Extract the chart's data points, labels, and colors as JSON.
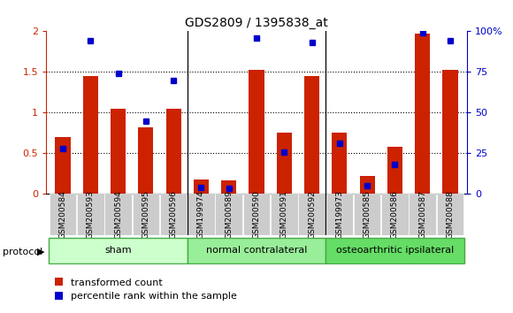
{
  "title": "GDS2809 / 1395838_at",
  "samples": [
    "GSM200584",
    "GSM200593",
    "GSM200594",
    "GSM200595",
    "GSM200596",
    "GSM199974",
    "GSM200589",
    "GSM200590",
    "GSM200591",
    "GSM200592",
    "GSM199973",
    "GSM200585",
    "GSM200586",
    "GSM200587",
    "GSM200588"
  ],
  "red_values": [
    0.7,
    1.45,
    1.05,
    0.82,
    1.05,
    0.18,
    0.17,
    1.53,
    0.75,
    1.45,
    0.76,
    0.22,
    0.58,
    1.97,
    1.53
  ],
  "blue_percentile": [
    28,
    94,
    74,
    45,
    70,
    4,
    3.5,
    96,
    26,
    93,
    31,
    5,
    18,
    99,
    94
  ],
  "ylim_left": [
    0,
    2
  ],
  "ylim_right": [
    0,
    100
  ],
  "yticks_left": [
    0,
    0.5,
    1.0,
    1.5,
    2.0
  ],
  "yticks_right": [
    0,
    25,
    50,
    75,
    100
  ],
  "ytick_labels_right": [
    "0",
    "25",
    "50",
    "75",
    "100%"
  ],
  "groups": [
    {
      "label": "sham",
      "start": 0,
      "end": 5,
      "color": "#ccffcc"
    },
    {
      "label": "normal contralateral",
      "start": 5,
      "end": 10,
      "color": "#99ee99"
    },
    {
      "label": "osteoarthritic ipsilateral",
      "start": 10,
      "end": 15,
      "color": "#66dd66"
    }
  ],
  "protocol_label": "protocol",
  "legend_red": "transformed count",
  "legend_blue": "percentile rank within the sample",
  "bar_color": "#cc2200",
  "dot_color": "#0000cc",
  "bar_width": 0.55,
  "background_color": "#ffffff",
  "axis_color_left": "#cc2200",
  "axis_color_right": "#0000cc",
  "group_edge_color": "#44aa44",
  "sample_box_color": "#cccccc"
}
